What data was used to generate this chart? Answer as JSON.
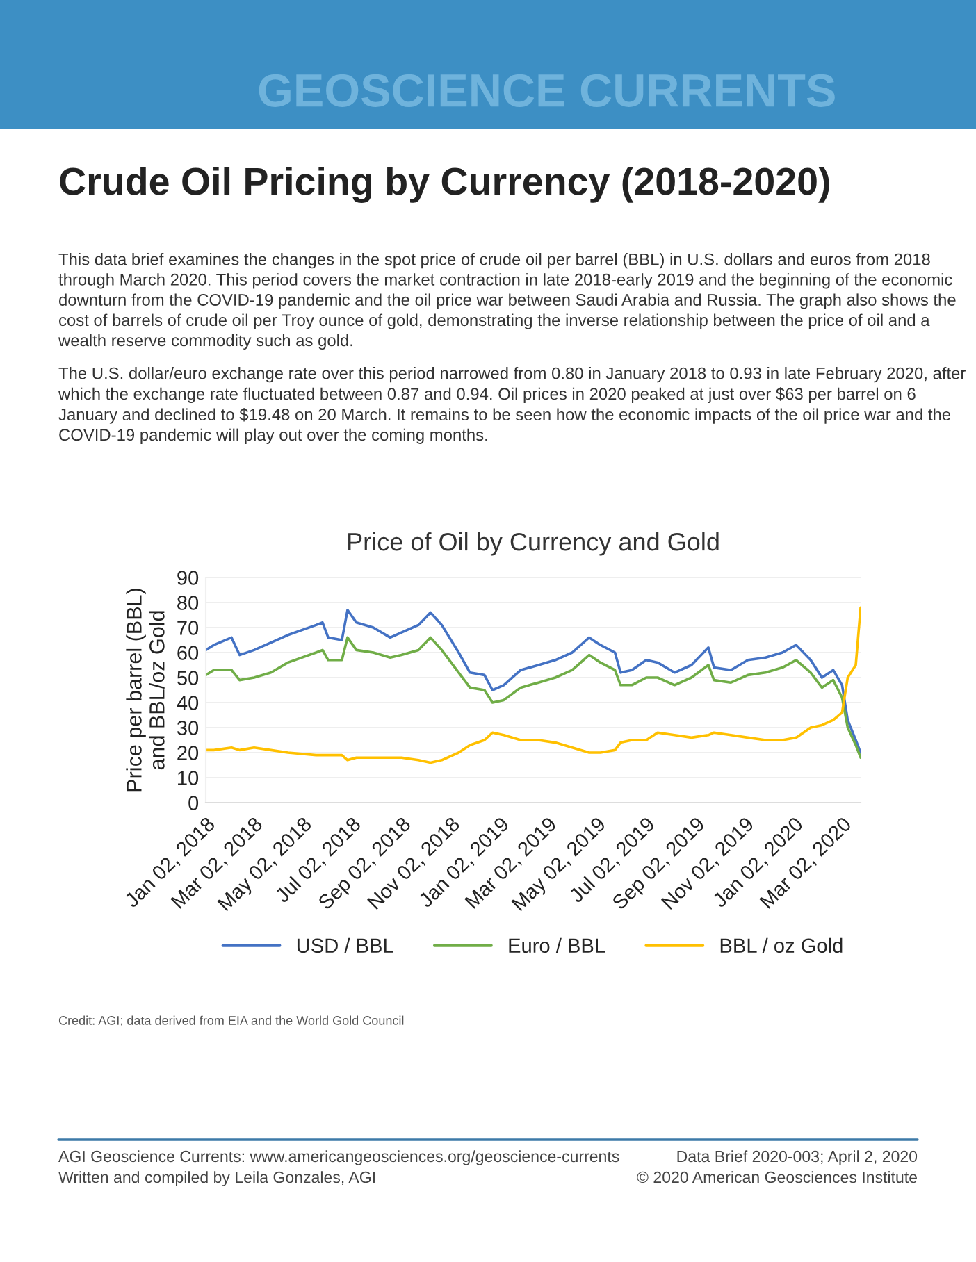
{
  "chart_data": {
    "type": "line",
    "title": "Price of Oil by Currency and Gold",
    "ylabel": "Price per barrel (BBL)\nand BBL/oz Gold",
    "x": [
      "2018-01-02",
      "2018-01-12",
      "2018-02-03",
      "2018-02-13",
      "2018-03-03",
      "2018-03-24",
      "2018-04-14",
      "2018-05-19",
      "2018-05-27",
      "2018-06-03",
      "2018-06-20",
      "2018-06-27",
      "2018-07-08",
      "2018-07-29",
      "2018-08-19",
      "2018-09-02",
      "2018-09-23",
      "2018-10-08",
      "2018-10-22",
      "2018-11-12",
      "2018-11-26",
      "2018-12-14",
      "2018-12-24",
      "2019-01-07",
      "2019-01-28",
      "2019-02-19",
      "2019-03-12",
      "2019-04-02",
      "2019-04-23",
      "2019-05-07",
      "2019-05-25",
      "2019-06-01",
      "2019-06-15",
      "2019-07-03",
      "2019-07-17",
      "2019-08-07",
      "2019-08-28",
      "2019-09-18",
      "2019-09-25",
      "2019-10-16",
      "2019-11-06",
      "2019-11-28",
      "2019-12-19",
      "2020-01-05",
      "2020-01-23",
      "2020-02-06",
      "2020-02-20",
      "2020-03-02",
      "2020-03-09",
      "2020-03-19",
      "2020-03-25"
    ],
    "series": [
      {
        "name": "USD / BBL",
        "color": "#4472c4",
        "values": [
          61,
          63,
          66,
          59,
          61,
          64,
          67,
          71,
          72,
          66,
          65,
          77,
          72,
          70,
          66,
          68,
          71,
          76,
          71,
          60,
          52,
          51,
          45,
          47,
          53,
          55,
          57,
          60,
          66,
          63,
          60,
          52,
          53,
          57,
          56,
          52,
          55,
          62,
          54,
          53,
          57,
          58,
          60,
          63,
          57,
          50,
          53,
          47,
          33,
          25,
          20
        ]
      },
      {
        "name": "Euro / BBL",
        "color": "#70ad47",
        "values": [
          51,
          53,
          53,
          49,
          50,
          52,
          56,
          60,
          61,
          57,
          57,
          66,
          61,
          60,
          58,
          59,
          61,
          66,
          61,
          52,
          46,
          45,
          40,
          41,
          46,
          48,
          50,
          53,
          59,
          56,
          53,
          47,
          47,
          50,
          50,
          47,
          50,
          55,
          49,
          48,
          51,
          52,
          54,
          57,
          52,
          46,
          49,
          42,
          30,
          23,
          18
        ]
      },
      {
        "name": "BBL / oz Gold",
        "color": "#ffc000",
        "values": [
          21,
          21,
          22,
          21,
          22,
          21,
          20,
          19,
          19,
          19,
          19,
          17,
          18,
          18,
          18,
          18,
          17,
          16,
          17,
          20,
          23,
          25,
          28,
          27,
          25,
          25,
          24,
          22,
          20,
          20,
          21,
          24,
          25,
          25,
          28,
          27,
          26,
          27,
          28,
          27,
          26,
          25,
          25,
          26,
          30,
          31,
          33,
          36,
          50,
          55,
          78
        ]
      }
    ],
    "xlim": [
      "2018-01-02",
      "2020-03-25"
    ],
    "xticks": [
      {
        "value": "2018-01-02",
        "label": "Jan 02, 2018"
      },
      {
        "value": "2018-03-02",
        "label": "Mar 02, 2018"
      },
      {
        "value": "2018-05-02",
        "label": "May 02, 2018"
      },
      {
        "value": "2018-07-02",
        "label": "Jul 02, 2018"
      },
      {
        "value": "2018-09-02",
        "label": "Sep 02, 2018"
      },
      {
        "value": "2018-11-02",
        "label": "Nov 02, 2018"
      },
      {
        "value": "2019-01-02",
        "label": "Jan 02, 2019"
      },
      {
        "value": "2019-03-02",
        "label": "Mar 02, 2019"
      },
      {
        "value": "2019-05-02",
        "label": "May 02, 2019"
      },
      {
        "value": "2019-07-02",
        "label": "Jul 02, 2019"
      },
      {
        "value": "2019-09-02",
        "label": "Sep 02, 2019"
      },
      {
        "value": "2019-11-02",
        "label": "Nov 02, 2019"
      },
      {
        "value": "2020-01-02",
        "label": "Jan 02, 2020"
      },
      {
        "value": "2020-03-02",
        "label": "Mar 02, 2020"
      }
    ],
    "ylim": [
      0,
      90
    ],
    "yticks": [
      0,
      10,
      20,
      30,
      40,
      50,
      60,
      70,
      80,
      90
    ],
    "grid": "y",
    "legend": "bottom",
    "marker": "none",
    "line_style": "solid",
    "annotations": [
      "GEOSCIENCE CURRENTS",
      "Crude Oil Pricing by Currency (2018-2020)",
      "This data brief examines the changes in the spot price of crude oil per barrel (BBL) in U.S. dollars and euros from 2018 through March 2020. This period covers the market contraction in late 2018-early 2019 and the beginning of the economic downturn from the COVID-19 pandemic and the oil price war between Saudi Arabia and Russia. The graph also shows the cost of barrels of crude oil per Troy ounce of gold, demonstrating the inverse relationship between the price of oil and a wealth reserve commodity such as gold.",
      "The U.S. dollar/euro exchange rate over this period narrowed from 0.80 in January 2018 to 0.93 in late February 2020, after which the exchange rate fluctuated between 0.87 and 0.94. Oil prices in 2020 peaked at just over $63 per barrel on 6 January and declined to $19.48 on 20 March. It remains to be seen how the economic impacts of the oil price war and the COVID-19 pandemic will play out over the coming months.",
      "Credit: AGI; data derived from EIA and the World Gold Council",
      "AGI Geoscience Currents: www.americangeosciences.org/geoscience-currents",
      "Written and compiled by Leila Gonzales, AGI",
      "Data Brief 2020-003; April 2, 2020",
      "© 2020 American Geosciences Institute"
    ]
  }
}
